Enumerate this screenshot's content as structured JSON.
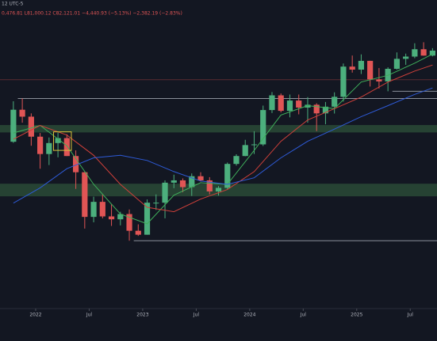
{
  "chart_data": {
    "type": "candlestick",
    "annotations": [
      "12 UTC-5",
      "0,476.81 L81,000.12 C82,121.01 −4,440.93 (−5.13%) −2,382.19 (−2.83%)"
    ],
    "log_scale": true,
    "ylim": [
      7600,
      194000
    ],
    "xlim": [
      "2021-09",
      "2025-10"
    ],
    "xticks": [
      {
        "value": "2022-01",
        "label": "2022"
      },
      {
        "value": "2022-07",
        "label": "Jul"
      },
      {
        "value": "2023-01",
        "label": "2023"
      },
      {
        "value": "2023-07",
        "label": "Jul"
      },
      {
        "value": "2024-01",
        "label": "2024"
      },
      {
        "value": "2024-07",
        "label": "Jul"
      },
      {
        "value": "2025-01",
        "label": "2025"
      },
      {
        "value": "2025-07",
        "label": "Jul"
      }
    ],
    "up_color": "#4caf7d",
    "down_color": "#e05555",
    "x": [
      "2021-10",
      "2021-11",
      "2021-12",
      "2022-01",
      "2022-02",
      "2022-03",
      "2022-04",
      "2022-05",
      "2022-06",
      "2022-07",
      "2022-08",
      "2022-09",
      "2022-10",
      "2022-11",
      "2022-12",
      "2023-01",
      "2023-02",
      "2023-03",
      "2023-04",
      "2023-05",
      "2023-06",
      "2023-07",
      "2023-08",
      "2023-09",
      "2023-10",
      "2023-11",
      "2023-12",
      "2024-01",
      "2024-02",
      "2024-03",
      "2024-04",
      "2024-05",
      "2024-06",
      "2024-07",
      "2024-08",
      "2024-09",
      "2024-10",
      "2024-11",
      "2024-12",
      "2025-01",
      "2025-02",
      "2025-03",
      "2025-04",
      "2025-05",
      "2025-06",
      "2025-07",
      "2025-08",
      "2025-09"
    ],
    "open": [
      43800,
      61300,
      57000,
      46200,
      38500,
      43200,
      45500,
      37700,
      31800,
      19900,
      23300,
      20000,
      19400,
      20500,
      17200,
      16500,
      23100,
      23100,
      28500,
      29200,
      27200,
      30500,
      29200,
      26000,
      27000,
      34700,
      37700,
      42300,
      42600,
      61100,
      71300,
      60600,
      67500,
      62700,
      64600,
      59000,
      63300,
      70200,
      96400,
      93400,
      102400,
      84300,
      82500,
      94200,
      104600,
      107100,
      115700,
      108200
    ],
    "high": [
      67000,
      69000,
      59000,
      48000,
      45800,
      48200,
      47400,
      40000,
      31900,
      24600,
      25200,
      22700,
      21000,
      21500,
      18400,
      23900,
      25200,
      29200,
      31000,
      29800,
      31400,
      31800,
      30200,
      27500,
      35200,
      38400,
      44700,
      48900,
      64000,
      73800,
      72700,
      71900,
      71900,
      70000,
      65600,
      66500,
      73600,
      99600,
      108300,
      109600,
      102500,
      95000,
      95700,
      111900,
      110500,
      123200,
      124500,
      117000
    ],
    "low": [
      43300,
      53500,
      42000,
      33000,
      34300,
      37200,
      37700,
      26700,
      17600,
      18800,
      19600,
      18100,
      18200,
      15500,
      16300,
      16500,
      21400,
      19600,
      26900,
      25800,
      24800,
      28900,
      25200,
      24900,
      26600,
      34100,
      37600,
      38500,
      41900,
      59200,
      59600,
      56600,
      58400,
      53500,
      49000,
      52600,
      58900,
      66800,
      90500,
      89200,
      78200,
      76600,
      74400,
      93400,
      98200,
      105300,
      108000,
      107300
    ],
    "close": [
      61300,
      57000,
      46200,
      38500,
      43200,
      45500,
      37700,
      31800,
      19900,
      23300,
      20000,
      19400,
      20500,
      17200,
      16500,
      23100,
      23100,
      28500,
      29200,
      27200,
      30500,
      29200,
      26000,
      27000,
      34700,
      37700,
      42300,
      42600,
      61100,
      71300,
      60600,
      67500,
      62700,
      64600,
      59000,
      63300,
      70200,
      96400,
      93400,
      102400,
      84300,
      82500,
      94200,
      104600,
      107100,
      115700,
      108200,
      114000
    ],
    "moving_averages": [
      {
        "color": "#3fae5a",
        "x": [
          "2021-10",
          "2022-01",
          "2022-04",
          "2022-07",
          "2022-10",
          "2023-01",
          "2023-04",
          "2023-07",
          "2023-10",
          "2024-01",
          "2024-04",
          "2024-07",
          "2024-10",
          "2025-01",
          "2025-04",
          "2025-07",
          "2025-09"
        ],
        "values": [
          48000,
          52000,
          42000,
          28000,
          20500,
          18500,
          25000,
          28500,
          28000,
          40000,
          58000,
          64000,
          62000,
          82000,
          88000,
          100000,
          110000
        ]
      },
      {
        "color": "#d0403a",
        "x": [
          "2021-10",
          "2022-01",
          "2022-04",
          "2022-07",
          "2022-10",
          "2023-01",
          "2023-04",
          "2023-07",
          "2023-10",
          "2024-01",
          "2024-04",
          "2024-07",
          "2024-10",
          "2025-01",
          "2025-04",
          "2025-07",
          "2025-09"
        ],
        "values": [
          45000,
          52000,
          47000,
          38000,
          28000,
          22000,
          21000,
          24000,
          26500,
          32000,
          44000,
          55000,
          62000,
          70000,
          82000,
          92000,
          98000
        ]
      },
      {
        "color": "#2e5bd8",
        "x": [
          "2021-10",
          "2022-01",
          "2022-04",
          "2022-07",
          "2022-10",
          "2023-01",
          "2023-04",
          "2023-07",
          "2023-10",
          "2024-01",
          "2024-04",
          "2024-07",
          "2024-10",
          "2025-01",
          "2025-04",
          "2025-07",
          "2025-09"
        ],
        "values": [
          23000,
          27000,
          33000,
          37000,
          38000,
          36000,
          32000,
          29000,
          28000,
          30000,
          37000,
          44000,
          50000,
          57000,
          64000,
          72000,
          77000
        ]
      }
    ],
    "zones": [
      {
        "from": 48300,
        "to": 52200,
        "color": "#2a4a36"
      },
      {
        "from": 24700,
        "to": 28200,
        "color": "#2a4a36"
      }
    ],
    "levels": [
      {
        "value": 69000,
        "from": "2021-11",
        "color": "#8a8f99"
      },
      {
        "value": 15500,
        "from": "2022-12",
        "color": "#8a8f99"
      },
      {
        "value": 74400,
        "from": "2025-05",
        "color": "#8a8f99"
      },
      {
        "value": 84000,
        "from": "2021-09",
        "color": "#5a2a30"
      }
    ],
    "boxes": [
      {
        "x": [
          "2022-03",
          "2022-05"
        ],
        "y": [
          40000,
          48600
        ],
        "color": "#d8c23a"
      }
    ]
  }
}
